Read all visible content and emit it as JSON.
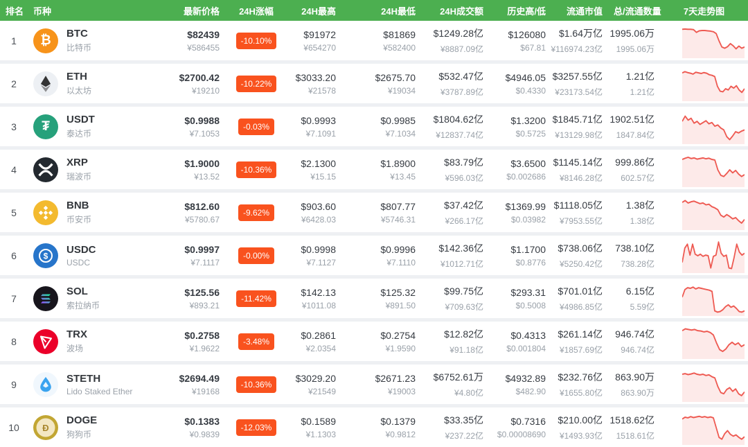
{
  "colors": {
    "header_bg": "#4caf50",
    "header_text": "#ffffff",
    "badge_bg": "#f9521e",
    "badge_text": "#ffffff",
    "spark_line": "#ee5a52",
    "spark_fill_opacity": 0.13,
    "row_bg": "#ffffff",
    "page_bg": "#eef0f3",
    "primary_text": "#363b42",
    "secondary_text": "#9aa1a9"
  },
  "icons": {
    "btc": {
      "bg": "#f7931a",
      "fg": "#ffffff"
    },
    "eth": {
      "bg": "#edf0f4",
      "fg": "#343434"
    },
    "usdt": {
      "bg": "#26a17b",
      "fg": "#ffffff"
    },
    "xrp": {
      "bg": "#23292f",
      "fg": "#ffffff"
    },
    "bnb": {
      "bg": "#f3ba2f",
      "fg": "#ffffff"
    },
    "usdc": {
      "bg": "#2775ca",
      "fg": "#ffffff"
    },
    "sol": {
      "bg": "#17151c",
      "fg": "#ffffff"
    },
    "trx": {
      "bg": "#eb0029",
      "fg": "#ffffff"
    },
    "steth": {
      "bg": "#f0f7fd",
      "fg": "#3aa3ef"
    },
    "doge": {
      "bg": "#c2a633",
      "fg": "#f3e7c3"
    }
  },
  "table": {
    "columns": [
      {
        "key": "rank",
        "label": "排名"
      },
      {
        "key": "coin",
        "label": "币种"
      },
      {
        "key": "price",
        "label": "最新价格"
      },
      {
        "key": "change",
        "label": "24H涨幅"
      },
      {
        "key": "high",
        "label": "24H最高"
      },
      {
        "key": "low",
        "label": "24H最低"
      },
      {
        "key": "volume",
        "label": "24H成交额"
      },
      {
        "key": "history",
        "label": "历史高/低"
      },
      {
        "key": "mcap",
        "label": "流通市值"
      },
      {
        "key": "supply",
        "label": "总/流通数量"
      },
      {
        "key": "chart",
        "label": "7天走势图"
      }
    ],
    "rows": [
      {
        "rank": "1",
        "symbol": "BTC",
        "name": "比特币",
        "icon": "btc",
        "price": "$82439",
        "price2": "¥586455",
        "change": "-10.10%",
        "high": "$91972",
        "high2": "¥654270",
        "low": "$81869",
        "low2": "¥582400",
        "vol": "$1249.28亿",
        "vol2": "¥8887.09亿",
        "hist": "$126080",
        "hist2": "$67.81",
        "mcap": "$1.64万亿",
        "mcap2": "¥116974.23亿",
        "supply": "1995.06万",
        "supply2": "1995.06万",
        "spark": [
          88,
          89,
          88,
          88,
          87,
          78,
          83,
          84,
          84,
          83,
          82,
          80,
          74,
          50,
          30,
          26,
          31,
          41,
          34,
          24,
          33,
          26,
          30
        ]
      },
      {
        "rank": "2",
        "symbol": "ETH",
        "name": "以太坊",
        "icon": "eth",
        "price": "$2700.42",
        "price2": "¥19210",
        "change": "-10.22%",
        "high": "$3033.20",
        "high2": "¥21578",
        "low": "$2675.70",
        "low2": "¥19034",
        "vol": "$532.47亿",
        "vol2": "¥3787.89亿",
        "hist": "$4946.05",
        "hist2": "$0.4330",
        "mcap": "$3257.55亿",
        "mcap2": "¥23173.54亿",
        "supply": "1.21亿",
        "supply2": "1.21亿",
        "spark": [
          86,
          90,
          87,
          85,
          82,
          88,
          86,
          84,
          87,
          85,
          80,
          78,
          74,
          42,
          26,
          24,
          34,
          30,
          42,
          36,
          44,
          30,
          22,
          34
        ]
      },
      {
        "rank": "3",
        "symbol": "USDT",
        "name": "泰达币",
        "icon": "usdt",
        "price": "$0.9988",
        "price2": "¥7.1053",
        "change": "-0.03%",
        "high": "$0.9993",
        "high2": "¥7.1091",
        "low": "$0.9985",
        "low2": "¥7.1034",
        "vol": "$1804.62亿",
        "vol2": "¥12837.74亿",
        "hist": "$1.3200",
        "hist2": "$0.5725",
        "mcap": "$1845.71亿",
        "mcap2": "¥13129.98亿",
        "supply": "1902.51亿",
        "supply2": "1847.84亿",
        "spark": [
          68,
          85,
          72,
          78,
          62,
          68,
          58,
          64,
          70,
          60,
          64,
          52,
          56,
          46,
          40,
          18,
          8,
          20,
          34,
          30,
          36,
          40
        ]
      },
      {
        "rank": "4",
        "symbol": "XRP",
        "name": "瑞波币",
        "icon": "xrp",
        "price": "$1.9000",
        "price2": "¥13.52",
        "change": "-10.36%",
        "high": "$2.1300",
        "high2": "¥15.15",
        "low": "$1.8900",
        "low2": "¥13.45",
        "vol": "$83.79亿",
        "vol2": "¥596.03亿",
        "hist": "$3.6500",
        "hist2": "$0.002686",
        "mcap": "$1145.14亿",
        "mcap2": "¥8146.28亿",
        "supply": "999.86亿",
        "supply2": "602.57亿",
        "spark": [
          84,
          88,
          91,
          87,
          89,
          85,
          87,
          89,
          86,
          88,
          84,
          82,
          50,
          32,
          28,
          38,
          50,
          40,
          48,
          36,
          28,
          34
        ]
      },
      {
        "rank": "5",
        "symbol": "BNB",
        "name": "币安币",
        "icon": "bnb",
        "price": "$812.60",
        "price2": "¥5780.67",
        "change": "-9.62%",
        "high": "$903.60",
        "high2": "¥6428.03",
        "low": "$807.77",
        "low2": "¥5746.31",
        "vol": "$37.42亿",
        "vol2": "¥266.17亿",
        "hist": "$1369.99",
        "hist2": "$0.03982",
        "mcap": "$1118.05亿",
        "mcap2": "¥7953.55亿",
        "supply": "1.38亿",
        "supply2": "1.38亿",
        "spark": [
          84,
          90,
          82,
          86,
          88,
          84,
          80,
          82,
          76,
          78,
          70,
          66,
          60,
          42,
          36,
          44,
          38,
          30,
          34,
          24,
          16,
          28
        ]
      },
      {
        "rank": "6",
        "symbol": "USDC",
        "name": "USDC",
        "icon": "usdc",
        "price": "$0.9997",
        "price2": "¥7.1117",
        "change": "-0.00%",
        "high": "$0.9998",
        "high2": "¥7.1127",
        "low": "$0.9996",
        "low2": "¥7.1110",
        "vol": "$142.36亿",
        "vol2": "¥1012.71亿",
        "hist": "$1.1700",
        "hist2": "$0.8776",
        "mcap": "$738.06亿",
        "mcap2": "¥5250.42亿",
        "supply": "738.10亿",
        "supply2": "738.28亿",
        "spark": [
          28,
          75,
          88,
          52,
          88,
          55,
          50,
          55,
          48,
          52,
          50,
          10,
          48,
          52,
          95,
          58,
          48,
          52,
          10,
          8,
          45,
          88,
          62,
          52,
          58
        ]
      },
      {
        "rank": "7",
        "symbol": "SOL",
        "name": "索拉纳币",
        "icon": "sol",
        "price": "$125.56",
        "price2": "¥893.21",
        "change": "-11.42%",
        "high": "$142.13",
        "high2": "¥1011.08",
        "low": "$125.32",
        "low2": "¥891.50",
        "vol": "$99.75亿",
        "vol2": "¥709.63亿",
        "hist": "$293.31",
        "hist2": "$0.5008",
        "mcap": "$701.01亿",
        "mcap2": "¥4986.85亿",
        "supply": "6.15亿",
        "supply2": "5.59亿",
        "spark": [
          55,
          80,
          86,
          84,
          88,
          82,
          86,
          84,
          82,
          80,
          78,
          74,
          10,
          6,
          8,
          14,
          24,
          30,
          22,
          26,
          18,
          8,
          6,
          10
        ]
      },
      {
        "rank": "8",
        "symbol": "TRX",
        "name": "波场",
        "icon": "trx",
        "price": "$0.2758",
        "price2": "¥1.9622",
        "change": "-3.48%",
        "high": "$0.2861",
        "high2": "¥2.0354",
        "low": "$0.2754",
        "low2": "¥1.9590",
        "vol": "$12.82亿",
        "vol2": "¥91.18亿",
        "hist": "$0.4313",
        "hist2": "$0.001804",
        "mcap": "$261.14亿",
        "mcap2": "¥1857.69亿",
        "supply": "946.74亿",
        "supply2": "946.74亿",
        "spark": [
          86,
          92,
          90,
          88,
          90,
          86,
          85,
          82,
          84,
          80,
          72,
          46,
          24,
          18,
          26,
          40,
          48,
          40,
          46,
          34,
          40
        ]
      },
      {
        "rank": "9",
        "symbol": "STETH",
        "name": "Lido Staked Ether",
        "icon": "steth",
        "price": "$2694.49",
        "price2": "¥19168",
        "change": "-10.36%",
        "high": "$3029.20",
        "high2": "¥21549",
        "low": "$2671.23",
        "low2": "¥19003",
        "vol": "$6752.61万",
        "vol2": "¥4.80亿",
        "hist": "$4932.89",
        "hist2": "$482.90",
        "mcap": "$232.76亿",
        "mcap2": "¥1655.80亿",
        "supply": "863.90万",
        "supply2": "863.90万",
        "spark": [
          84,
          86,
          83,
          85,
          88,
          84,
          82,
          84,
          80,
          82,
          76,
          72,
          44,
          24,
          20,
          34,
          40,
          28,
          36,
          20,
          14,
          26
        ]
      },
      {
        "rank": "10",
        "symbol": "DOGE",
        "name": "狗狗币",
        "icon": "doge",
        "price": "$0.1383",
        "price2": "¥0.9839",
        "change": "-12.03%",
        "high": "$0.1589",
        "high2": "¥1.1303",
        "low": "$0.1379",
        "low2": "¥0.9812",
        "vol": "$33.35亿",
        "vol2": "¥237.22亿",
        "hist": "$0.7316",
        "hist2": "$0.00008690",
        "mcap": "$210.00亿",
        "mcap2": "¥1493.93亿",
        "supply": "1518.62亿",
        "supply2": "1518.61亿",
        "spark": [
          78,
          84,
          82,
          86,
          83,
          85,
          87,
          84,
          86,
          83,
          85,
          82,
          50,
          18,
          12,
          30,
          40,
          28,
          22,
          26,
          18,
          12,
          20
        ]
      }
    ]
  }
}
